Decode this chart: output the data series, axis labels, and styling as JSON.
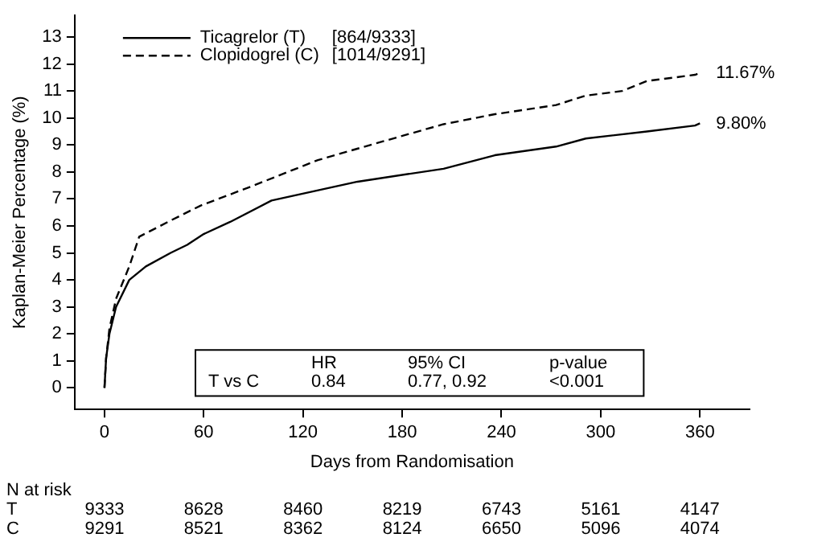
{
  "chart_data": {
    "type": "line",
    "xlabel": "Days from Randomisation",
    "ylabel": "Kaplan-Meier Percentage (%)",
    "xlim": [
      -18,
      390
    ],
    "xticks": [
      0,
      60,
      120,
      180,
      240,
      300,
      360
    ],
    "ylim": [
      -0.8,
      13.8
    ],
    "yticks": [
      0,
      1,
      2,
      3,
      4,
      5,
      6,
      7,
      8,
      9,
      10,
      11,
      12,
      13
    ],
    "grid": false,
    "legend": "top left",
    "marker": "none",
    "series": [
      {
        "name": "Ticagrelor (T)   [864/9333]",
        "color": "#000000",
        "line_style": "solid",
        "x": [
          0,
          1,
          3,
          7,
          15,
          25,
          40,
          50,
          60,
          76,
          101,
          153,
          205,
          236,
          273,
          291,
          328,
          357,
          360
        ],
        "values": [
          0,
          1.1,
          2,
          3,
          4,
          4.5,
          5,
          5.3,
          5.7,
          6.15,
          6.94,
          7.64,
          8.12,
          8.62,
          8.94,
          9.24,
          9.5,
          9.72,
          9.8
        ]
      },
      {
        "name": "Clopidogrel (C)   [1014/9291]",
        "color": "#000000",
        "line_style": "dashed",
        "x": [
          0,
          1,
          3,
          7,
          15,
          21,
          40,
          58,
          89,
          129,
          159,
          205,
          236,
          273,
          291,
          313,
          328,
          357,
          360
        ],
        "values": [
          0,
          1.1,
          2.2,
          3.3,
          4.5,
          5.6,
          6.2,
          6.75,
          7.47,
          8.44,
          8.97,
          9.77,
          10.14,
          10.48,
          10.83,
          11.0,
          11.37,
          11.6,
          11.67
        ]
      }
    ],
    "annotations": [
      {
        "text": "9.80%",
        "x": 360,
        "y": 9.8
      },
      {
        "text": "11.67%",
        "x": 360,
        "y": 11.67
      },
      "HR",
      "95% CI",
      "p-value",
      "T vs C",
      "0.84",
      "0.77, 0.92",
      "<0.001",
      "N at risk",
      "T",
      "9333",
      "8628",
      "8460",
      "8219",
      "6743",
      "5161",
      "4147",
      "C",
      "9291",
      "8521",
      "8362",
      "8124",
      "6650",
      "5096",
      "4074"
    ]
  }
}
